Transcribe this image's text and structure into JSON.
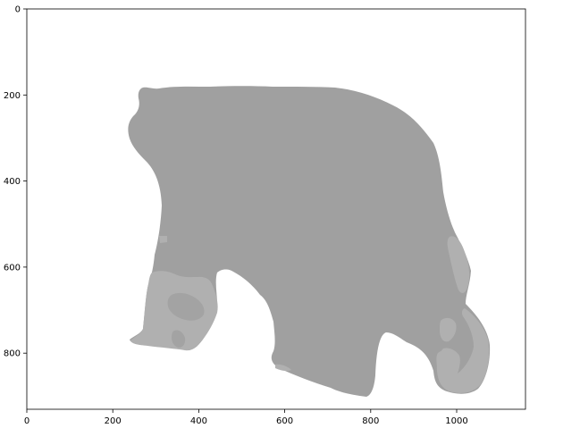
{
  "image": {
    "x_ticks": [
      "0",
      "200",
      "400",
      "600",
      "800",
      "1000"
    ],
    "y_ticks": [
      "0",
      "200",
      "400",
      "600",
      "800"
    ],
    "x_range": [
      0,
      1160
    ],
    "y_range": [
      930,
      0
    ],
    "background_color": "#ffffff",
    "region_colors": {
      "main": "#a0a0a0",
      "light": "#b0b0b0"
    }
  }
}
